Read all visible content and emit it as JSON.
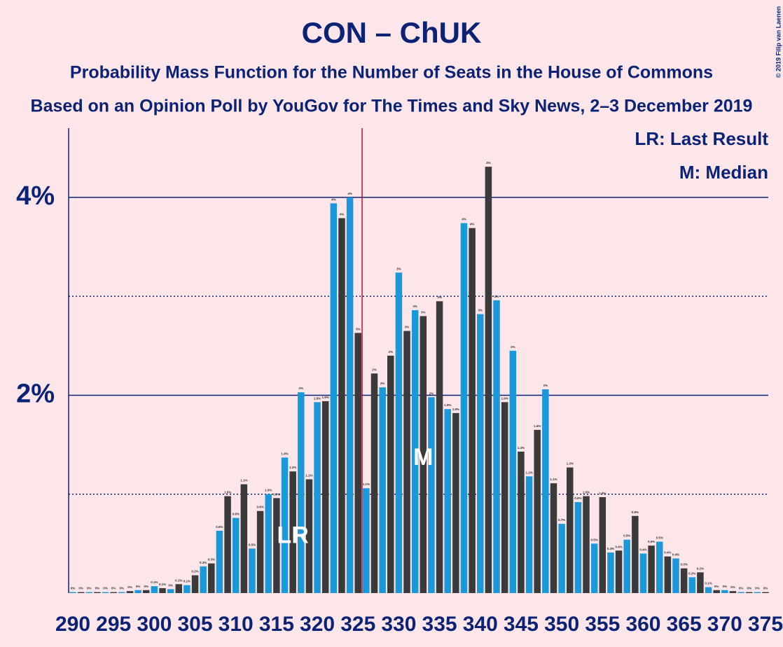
{
  "chart_data": {
    "type": "bar",
    "title": "CON – ChUK",
    "subtitle": "Probability Mass Function for the Number of Seats in the House of Commons",
    "subtitle2": "Based on an Opinion Poll by YouGov for The Times and Sky News, 2–3 December 2019",
    "copyright": "© 2019 Filip van Laenen",
    "legend": [
      "LR: Last Result",
      "M: Median"
    ],
    "x": [
      290,
      291,
      292,
      293,
      294,
      295,
      296,
      297,
      298,
      299,
      300,
      301,
      302,
      303,
      304,
      305,
      306,
      307,
      308,
      309,
      310,
      311,
      312,
      313,
      314,
      315,
      316,
      317,
      318,
      319,
      320,
      321,
      322,
      323,
      324,
      325,
      326,
      327,
      328,
      329,
      330,
      331,
      332,
      333,
      334,
      335,
      336,
      337,
      338,
      339,
      340,
      341,
      342,
      343,
      344,
      345,
      346,
      347,
      348,
      349,
      350,
      351,
      352,
      353,
      354,
      355,
      356,
      357,
      358,
      359,
      360,
      361,
      362,
      363,
      364,
      365,
      366,
      367,
      368,
      369,
      370,
      371,
      372,
      373,
      374,
      375
    ],
    "values": [
      0.01,
      0.01,
      0.01,
      0.01,
      0.01,
      0.01,
      0.01,
      0.02,
      0.03,
      0.03,
      0.07,
      0.05,
      0.04,
      0.09,
      0.08,
      0.18,
      0.27,
      0.3,
      0.63,
      0.98,
      0.76,
      1.1,
      0.45,
      0.83,
      1.0,
      0.96,
      1.37,
      1.23,
      2.03,
      1.15,
      1.93,
      1.94,
      3.94,
      3.79,
      4.0,
      2.63,
      1.06,
      2.22,
      2.08,
      2.4,
      3.24,
      2.65,
      2.86,
      2.8,
      1.98,
      2.95,
      1.86,
      1.82,
      3.74,
      3.69,
      2.82,
      4.31,
      2.96,
      1.93,
      2.45,
      1.43,
      1.18,
      1.65,
      2.06,
      1.11,
      0.7,
      1.27,
      0.92,
      0.98,
      0.5,
      0.97,
      0.41,
      0.43,
      0.54,
      0.78,
      0.4,
      0.48,
      0.52,
      0.37,
      0.35,
      0.25,
      0.16,
      0.21,
      0.06,
      0.03,
      0.03,
      0.02,
      0.01,
      0.01,
      0.01,
      0.01
    ],
    "value_labels": [
      "0%",
      "0%",
      "0%",
      "0%",
      "0%",
      "0%",
      "0%",
      "0%",
      "0%",
      "0%",
      "0.1%",
      "0.1%",
      "0%",
      "0.1%",
      "0.1%",
      "0.2%",
      "0.3%",
      "0.3%",
      "0.6%",
      "1.0%",
      "0.8%",
      "1.1%",
      "0.5%",
      "0.8%",
      "1.0%",
      "1.0%",
      "1.4%",
      "1.2%",
      "2%",
      "1.1%",
      "1.9%",
      "1.9%",
      "4%",
      "4%",
      "4%",
      "3%",
      "1.1%",
      "2%",
      "2%",
      "2%",
      "3%",
      "3%",
      "3%",
      "3%",
      "2%",
      "3%",
      "1.9%",
      "1.8%",
      "4%",
      "4%",
      "3%",
      "4%",
      "3%",
      "1.9%",
      "2%",
      "1.4%",
      "1.2%",
      "1.6%",
      "2%",
      "1.1%",
      "0.7%",
      "1.3%",
      "0.9%",
      "1.0%",
      "0.5%",
      "1.0%",
      "0.4%",
      "0.4%",
      "0.5%",
      "0.8%",
      "0.4%",
      "0.5%",
      "0.5%",
      "0.4%",
      "0.4%",
      "0.3%",
      "0.2%",
      "0.2%",
      "0.1%",
      "0%",
      "0%",
      "0%",
      "0%",
      "0%",
      "0%",
      "0%"
    ],
    "colors": [
      "#1b98d9",
      "#3a3a3a"
    ],
    "xlim": [
      290,
      375
    ],
    "xticks": [
      290,
      295,
      300,
      305,
      310,
      315,
      320,
      325,
      330,
      335,
      340,
      345,
      350,
      355,
      360,
      365,
      370,
      375
    ],
    "ylim": [
      0,
      4.7
    ],
    "yticks": [
      {
        "value": 2,
        "label": "2%"
      },
      {
        "value": 4,
        "label": "4%"
      }
    ],
    "minor_yticks": [
      1,
      3
    ],
    "vline": {
      "x": 325.5,
      "color": "#c8102e"
    },
    "annotations": [
      {
        "text": "LR",
        "x": 317,
        "y": 0.57
      },
      {
        "text": "M",
        "x": 333,
        "y": 1.36
      }
    ]
  }
}
